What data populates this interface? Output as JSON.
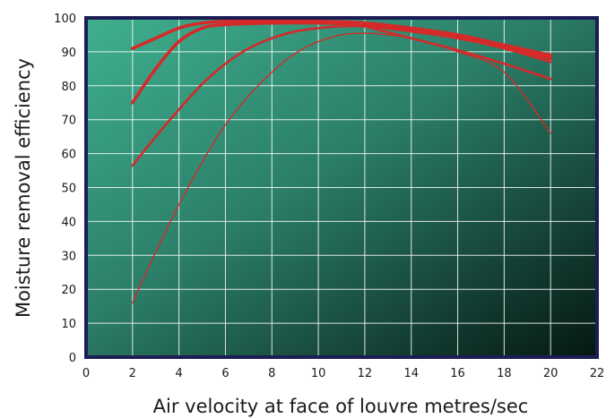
{
  "chart_data": {
    "type": "line",
    "title": "",
    "xlabel": "Air velocity at face of louvre metres/sec",
    "ylabel": "Moisture removal efficiency",
    "xlim": [
      0,
      22
    ],
    "ylim": [
      0,
      100
    ],
    "x_ticks": [
      0,
      2,
      4,
      6,
      8,
      10,
      12,
      14,
      16,
      18,
      20,
      22
    ],
    "y_ticks": [
      0,
      10,
      20,
      30,
      40,
      50,
      60,
      70,
      80,
      90,
      100
    ],
    "grid": true,
    "colors": {
      "plot_gradient_start": "#3fb08f",
      "plot_gradient_end": "#051712",
      "frame": "#1d1d55",
      "grid": "#ffffff",
      "series": "#d42a2a"
    },
    "series": [
      {
        "x": [
          2,
          3,
          4,
          5,
          6,
          8,
          10,
          12,
          14,
          16,
          18,
          20
        ],
        "y": [
          91,
          94,
          97,
          98.5,
          99,
          99,
          99,
          98.5,
          97,
          95,
          92,
          89
        ],
        "stroke_weight": "heavy"
      },
      {
        "x": [
          2,
          3,
          4,
          5,
          6,
          8,
          10,
          12,
          14,
          16,
          18,
          20
        ],
        "y": [
          75,
          85,
          93,
          97,
          98,
          98.5,
          98.5,
          98,
          96.5,
          94.5,
          91.5,
          88
        ],
        "stroke_weight": "heavy"
      },
      {
        "x": [
          2,
          3,
          4,
          5,
          6,
          7,
          8,
          9,
          10,
          11,
          12,
          14,
          16,
          18,
          20
        ],
        "y": [
          56.5,
          65,
          73,
          80.5,
          86.5,
          91,
          94,
          96,
          97,
          97.5,
          97.5,
          96,
          94,
          91,
          87
        ],
        "stroke_weight": "medium"
      },
      {
        "x": [
          2,
          3,
          4,
          5,
          6,
          7,
          8,
          9,
          10,
          11,
          12,
          13,
          14,
          16,
          18,
          20
        ],
        "y": [
          16,
          31,
          45,
          57.5,
          68.5,
          77,
          84,
          89.5,
          93,
          95,
          95.5,
          95,
          94,
          90,
          84,
          66
        ],
        "stroke_weight": "thin"
      },
      {
        "x": [
          12,
          14,
          16,
          18,
          20
        ],
        "y": [
          97.5,
          94,
          90.5,
          86.5,
          82
        ],
        "stroke_weight": "medium"
      }
    ]
  }
}
